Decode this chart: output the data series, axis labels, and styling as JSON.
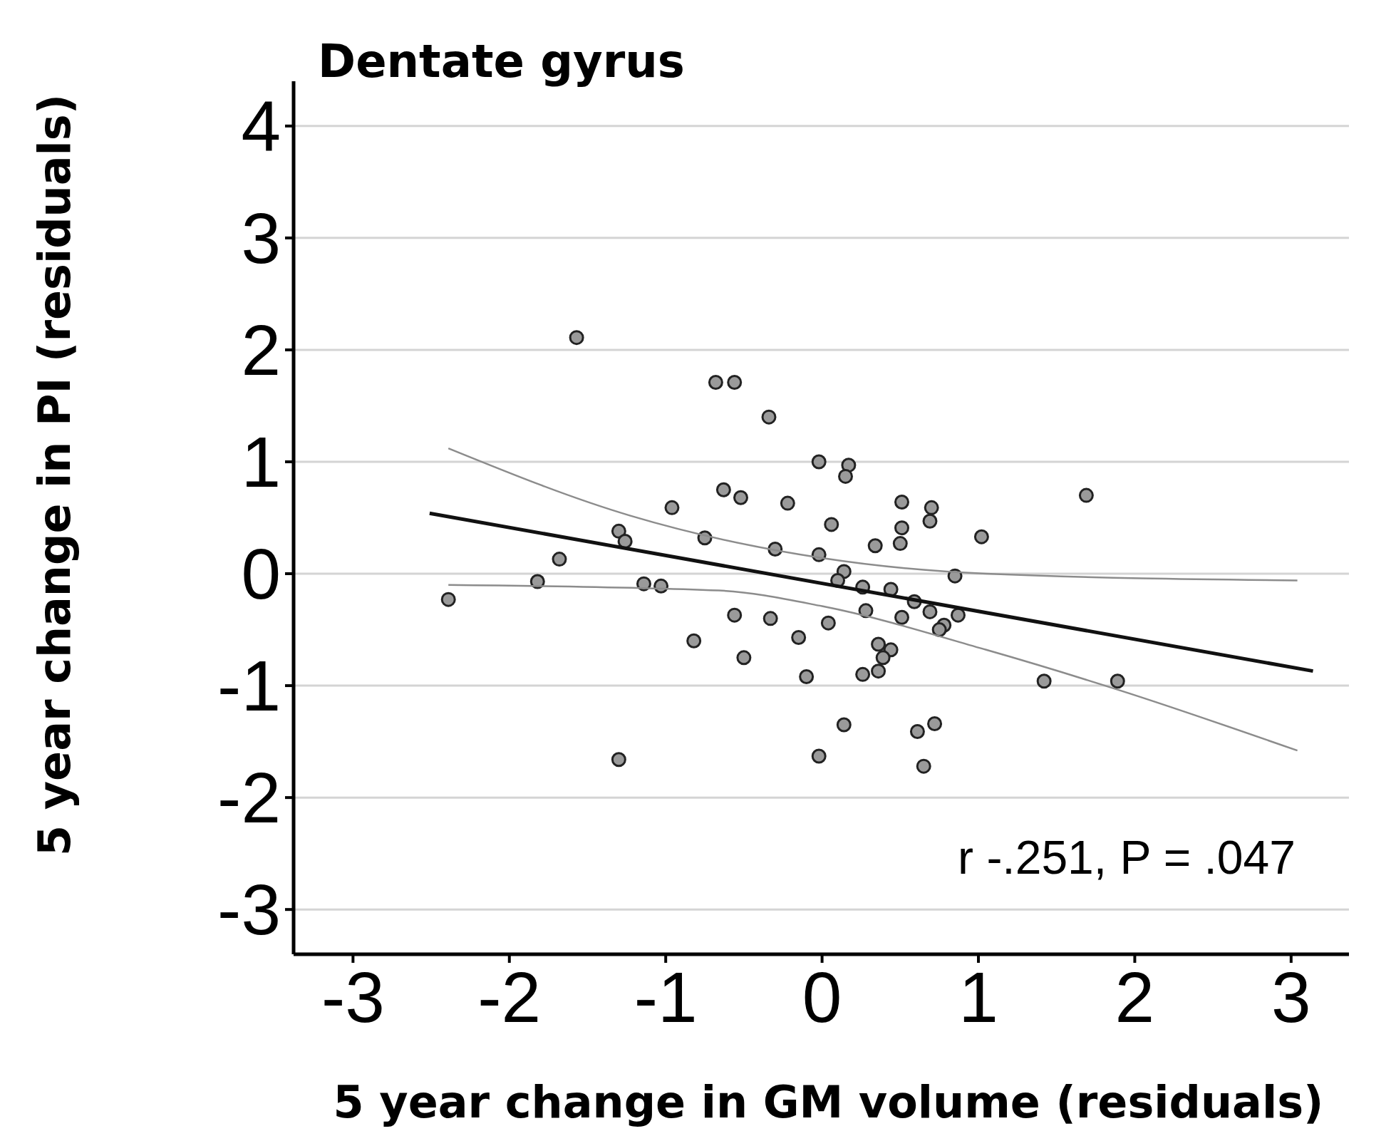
{
  "chart_data": {
    "type": "scatter",
    "title": "Dentate gyrus",
    "xlabel": "5 year change in GM volume (residuals)",
    "ylabel": "5 year change in PI (residuals)",
    "xlim": [
      -3.38,
      3.37
    ],
    "ylim": [
      -3.4,
      4.4
    ],
    "xticks": [
      -3,
      -2,
      -1,
      0,
      1,
      2,
      3
    ],
    "yticks": [
      -3,
      -2,
      -1,
      0,
      1,
      2,
      3,
      4
    ],
    "grid": "y",
    "annotations": [
      "r  -.251, P = .047"
    ],
    "series": [
      {
        "marker": "circle",
        "color": "#9a9a9a",
        "x": [
          -1.57,
          -0.68,
          -0.56,
          -0.34,
          -0.02,
          0.17,
          0.15,
          -0.96,
          -0.63,
          -0.52,
          -0.22,
          0.51,
          0.7,
          0.69,
          1.69,
          0.06,
          0.51,
          0.5,
          0.34,
          1.02,
          -1.3,
          -1.26,
          -0.75,
          -0.3,
          -0.02,
          -1.68,
          -1.82,
          -2.39,
          -1.14,
          -1.03,
          0.14,
          0.1,
          0.26,
          0.44,
          0.85,
          0.59,
          0.69,
          0.51,
          0.28,
          0.87,
          0.78,
          0.75,
          -0.56,
          -0.33,
          0.04,
          -0.15,
          -0.82,
          0.36,
          0.44,
          0.39,
          -0.5,
          -0.1,
          0.26,
          0.36,
          1.42,
          1.89,
          0.14,
          0.72,
          0.61,
          -0.02,
          -1.3,
          0.65
        ],
        "values": [
          2.11,
          1.71,
          1.71,
          1.4,
          1.0,
          0.97,
          0.87,
          0.59,
          0.75,
          0.68,
          0.63,
          0.64,
          0.59,
          0.47,
          0.7,
          0.44,
          0.41,
          0.27,
          0.25,
          0.33,
          0.38,
          0.29,
          0.32,
          0.22,
          0.17,
          0.13,
          -0.07,
          -0.23,
          -0.09,
          -0.11,
          0.02,
          -0.06,
          -0.12,
          -0.14,
          -0.02,
          -0.25,
          -0.34,
          -0.39,
          -0.33,
          -0.37,
          -0.46,
          -0.5,
          -0.37,
          -0.4,
          -0.44,
          -0.57,
          -0.6,
          -0.63,
          -0.68,
          -0.75,
          -0.75,
          -0.92,
          -0.9,
          -0.87,
          -0.96,
          -0.96,
          -1.35,
          -1.34,
          -1.41,
          -1.63,
          -1.66,
          -1.72
        ]
      },
      {
        "type": "line",
        "color": "#111111",
        "x": [
          -2.51,
          3.14
        ],
        "values": [
          0.54,
          -0.87
        ]
      },
      {
        "type": "line",
        "color": "#8c8c8c",
        "x": [
          -2.39,
          -1.23,
          0,
          1.05,
          3.04
        ],
        "values": [
          1.12,
          0.52,
          0.14,
          0,
          -0.06
        ]
      },
      {
        "type": "line",
        "color": "#8c8c8c",
        "x": [
          -2.39,
          -0.66,
          0,
          1.05,
          1.9,
          3.04
        ],
        "values": [
          -0.1,
          -0.15,
          -0.29,
          -0.68,
          -1.04,
          -1.58
        ]
      }
    ]
  }
}
